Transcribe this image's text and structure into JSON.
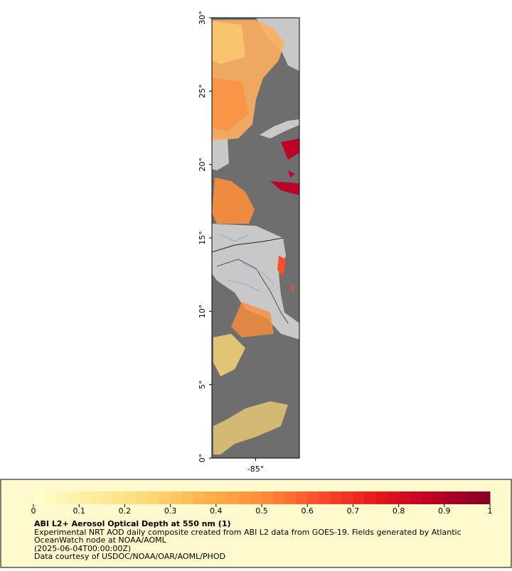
{
  "map": {
    "latlim": [
      0,
      30
    ],
    "lonlim": [
      -88,
      -82
    ],
    "lat_ticks": [
      {
        "value": 0,
        "label": "0°"
      },
      {
        "value": 5,
        "label": "5°"
      },
      {
        "value": 10,
        "label": "10°"
      },
      {
        "value": 15,
        "label": "15°"
      },
      {
        "value": 20,
        "label": "20°"
      },
      {
        "value": 25,
        "label": "25°"
      },
      {
        "value": 30,
        "label": "30°"
      }
    ],
    "lon_ticks": [
      {
        "value": -85,
        "label": "-85°"
      }
    ]
  },
  "colorbar": {
    "range": [
      0,
      1
    ],
    "ticks": [
      0,
      0.1,
      0.2,
      0.3,
      0.4,
      0.5,
      0.6,
      0.7,
      0.8,
      0.9,
      1
    ],
    "colors": [
      "#ffffcc",
      "#ffeda0",
      "#fed976",
      "#feb24c",
      "#fd8d3c",
      "#fc4e2a",
      "#e31a1c",
      "#bd0026",
      "#800026"
    ]
  },
  "caption": {
    "title": "ABI L2+ Aerosol Optical Depth at 550 nm (1)",
    "lines": [
      "Experimental NRT AOD daily composite created from ABI L2 data from GOES-19. Fields generated by Atlantic",
      "OceanWatch node at NOAA/AOML",
      "(2025-06-04T00:00:00Z)",
      "Data courtesy of USDOC/NOAA/OAR/AOML/PHOD"
    ]
  }
}
